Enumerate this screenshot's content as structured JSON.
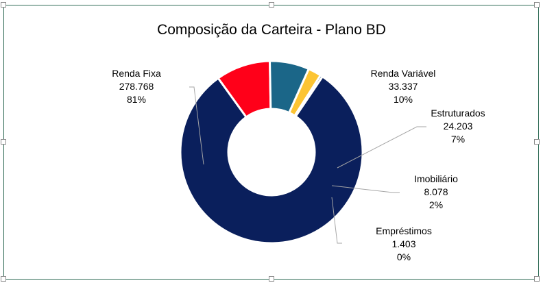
{
  "chart_data": {
    "type": "pie",
    "variant": "donut",
    "title": "Composição da Carteira - Plano BD",
    "legend": "none",
    "slices": [
      {
        "label": "Renda Fixa",
        "value_text": "278.768",
        "percent_text": "81%",
        "value": 278768,
        "color": "#0a1f5c"
      },
      {
        "label": "Renda Variável",
        "value_text": "33.337",
        "percent_text": "10%",
        "value": 33337,
        "color": "#ff0019"
      },
      {
        "label": "Estruturados",
        "value_text": "24.203",
        "percent_text": "7%",
        "value": 24203,
        "color": "#1b6688"
      },
      {
        "label": "Imobiliário",
        "value_text": "8.078",
        "percent_text": "2%",
        "value": 8078,
        "color": "#fcc433"
      },
      {
        "label": "Empréstimos",
        "value_text": "1.403",
        "percent_text": "0%",
        "value": 1403,
        "color": "#1f4e79"
      }
    ]
  }
}
